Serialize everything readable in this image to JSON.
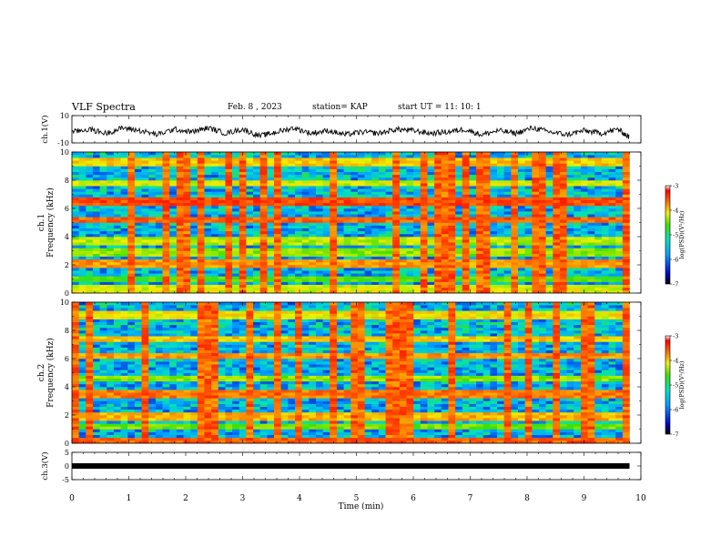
{
  "header": {
    "title": "VLF Spectra",
    "date": "Feb. 8 , 2023",
    "station": "station= KAP",
    "start_ut": "start UT =  11: 10: 1"
  },
  "chart_data": [
    {
      "type": "line",
      "panel": "ch1-waveform",
      "ylabel": "ch.1(V)",
      "ylim": [
        -10,
        10
      ],
      "y_ticks": [
        "10",
        "-10"
      ],
      "xlim": [
        0,
        10
      ],
      "description_values": {
        "x": [
          0,
          0.3,
          0.6,
          0.9,
          1.2,
          1.5,
          1.8,
          2.1,
          2.4,
          2.7,
          3.0,
          3.3,
          3.6,
          3.9,
          4.2,
          4.5,
          4.8,
          5.1,
          5.4,
          5.7,
          6.0,
          6.3,
          6.6,
          6.9,
          7.2,
          7.5,
          7.8,
          8.1,
          8.4,
          8.7,
          9.0,
          9.3,
          9.6,
          9.8
        ],
        "y": [
          -2,
          0,
          -3,
          1,
          -1,
          -4,
          0,
          -2,
          1,
          -3,
          0,
          -5,
          -2,
          1,
          -3,
          -1,
          -4,
          -2,
          -3,
          0,
          -1,
          -3,
          -2,
          0,
          -4,
          -1,
          -3,
          1,
          -2,
          -4,
          -1,
          -3,
          0,
          -6
        ]
      },
      "color": "#000000"
    },
    {
      "type": "heatmap",
      "panel": "ch1-spectrogram",
      "ylabel_top": "ch.1",
      "ylabel": "Frequency (kHz)",
      "ylim": [
        0,
        10
      ],
      "y_ticks": [
        "0",
        "2",
        "4",
        "6",
        "8",
        "10"
      ],
      "xlim": [
        0,
        10
      ],
      "data_end_min": 9.8,
      "colorbar": {
        "label": "log(PSD)(V²/Hz)",
        "range": [
          -7,
          -3
        ],
        "ticks": [
          "-3",
          "-4",
          "-5",
          "-6",
          "-7"
        ]
      }
    },
    {
      "type": "heatmap",
      "panel": "ch2-spectrogram",
      "ylabel_top": "ch.2",
      "ylabel": "Frequency (kHz)",
      "ylim": [
        0,
        10
      ],
      "y_ticks": [
        "0",
        "2",
        "4",
        "6",
        "8",
        "10"
      ],
      "xlim": [
        0,
        10
      ],
      "data_end_min": 9.8,
      "colorbar": {
        "label": "log(PSD)(V²/Hz)",
        "range": [
          -7,
          -3
        ],
        "ticks": [
          "-3",
          "-4",
          "-5",
          "-6",
          "-7"
        ]
      }
    },
    {
      "type": "line",
      "panel": "ch3-waveform",
      "ylabel": "ch.3(V)",
      "ylim": [
        -5,
        5
      ],
      "y_ticks": [
        "5",
        "0",
        "-5"
      ],
      "xlim": [
        0,
        10
      ],
      "x": [
        0,
        9.8
      ],
      "y": [
        0,
        0
      ],
      "color": "#000000"
    }
  ],
  "x_axis": {
    "label": "Time (min)",
    "ticks": [
      "0",
      "1",
      "2",
      "3",
      "4",
      "5",
      "6",
      "7",
      "8",
      "9",
      "10"
    ]
  }
}
